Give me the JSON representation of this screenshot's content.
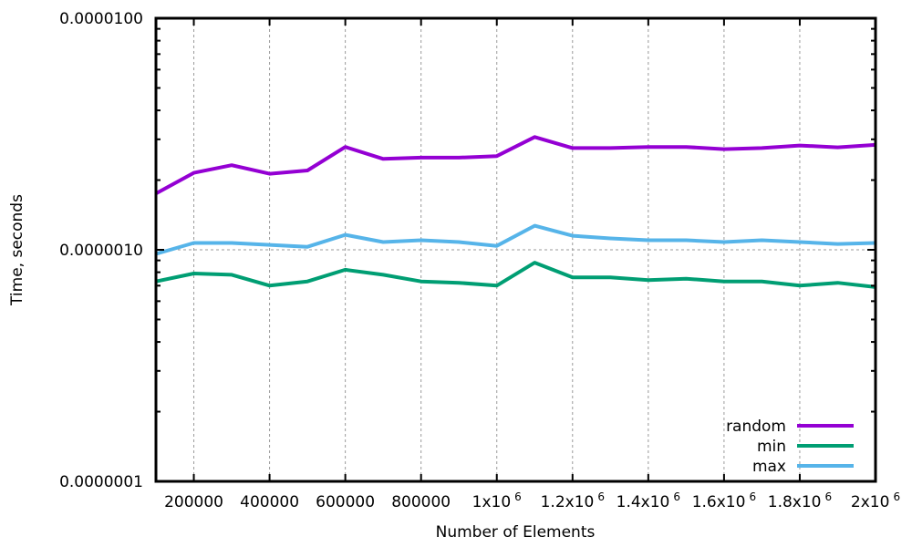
{
  "chart_data": {
    "type": "line",
    "title": "",
    "xlabel": "Number of Elements",
    "ylabel": "Time, seconds",
    "xlim": [
      100000,
      2000000
    ],
    "ylim": [
      1e-07,
      1e-05
    ],
    "y_scale": "log",
    "grid": true,
    "legend_position": "bottom-right",
    "x_ticks": [
      {
        "value": 200000,
        "base": "200000",
        "sup": ""
      },
      {
        "value": 400000,
        "base": "400000",
        "sup": ""
      },
      {
        "value": 600000,
        "base": "600000",
        "sup": ""
      },
      {
        "value": 800000,
        "base": "800000",
        "sup": ""
      },
      {
        "value": 1000000,
        "base": "1x10",
        "sup": "6"
      },
      {
        "value": 1200000,
        "base": "1.2x10",
        "sup": "6"
      },
      {
        "value": 1400000,
        "base": "1.4x10",
        "sup": "6"
      },
      {
        "value": 1600000,
        "base": "1.6x10",
        "sup": "6"
      },
      {
        "value": 1800000,
        "base": "1.8x10",
        "sup": "6"
      },
      {
        "value": 2000000,
        "base": "2x10",
        "sup": "6"
      }
    ],
    "y_ticks": [
      {
        "value": 1e-05,
        "label": "0.0000100"
      },
      {
        "value": 1e-06,
        "label": "0.0000010"
      },
      {
        "value": 1e-07,
        "label": "0.0000001"
      }
    ],
    "x": [
      100000,
      200000,
      300000,
      400000,
      500000,
      600000,
      700000,
      800000,
      900000,
      1000000,
      1100000,
      1200000,
      1300000,
      1400000,
      1500000,
      1600000,
      1700000,
      1800000,
      1900000,
      2000000
    ],
    "series": [
      {
        "name": "random",
        "color": "#9400d3",
        "values": [
          1.75e-06,
          2.15e-06,
          2.32e-06,
          2.13e-06,
          2.2e-06,
          2.78e-06,
          2.47e-06,
          2.5e-06,
          2.5e-06,
          2.54e-06,
          3.07e-06,
          2.75e-06,
          2.75e-06,
          2.78e-06,
          2.78e-06,
          2.72e-06,
          2.75e-06,
          2.82e-06,
          2.77e-06,
          2.84e-06
        ]
      },
      {
        "name": "min",
        "color": "#009e73",
        "values": [
          7.3e-07,
          7.9e-07,
          7.8e-07,
          7e-07,
          7.3e-07,
          8.2e-07,
          7.8e-07,
          7.3e-07,
          7.2e-07,
          7e-07,
          8.8e-07,
          7.6e-07,
          7.6e-07,
          7.4e-07,
          7.5e-07,
          7.3e-07,
          7.3e-07,
          7e-07,
          7.2e-07,
          6.9e-07
        ]
      },
      {
        "name": "max",
        "color": "#56b4e9",
        "values": [
          9.6e-07,
          1.07e-06,
          1.07e-06,
          1.05e-06,
          1.03e-06,
          1.16e-06,
          1.08e-06,
          1.1e-06,
          1.08e-06,
          1.04e-06,
          1.27e-06,
          1.15e-06,
          1.12e-06,
          1.1e-06,
          1.1e-06,
          1.08e-06,
          1.1e-06,
          1.08e-06,
          1.06e-06,
          1.07e-06
        ]
      }
    ]
  }
}
